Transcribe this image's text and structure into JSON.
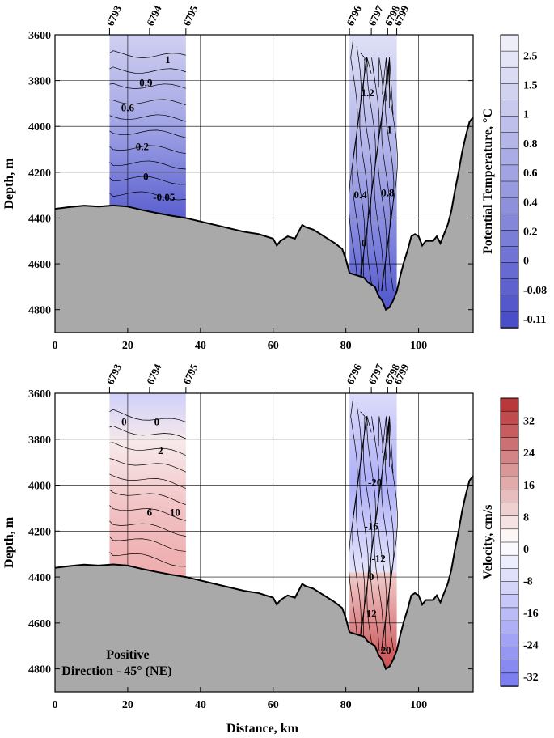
{
  "chart_data": [
    {
      "type": "heatmap",
      "panel": "top",
      "ylabel": "Depth, m",
      "xlabel": "",
      "xlim": [
        0,
        115
      ],
      "ylim": [
        4900,
        3600
      ],
      "x_ticks": [
        0,
        20,
        40,
        60,
        80,
        100
      ],
      "y_ticks": [
        3600,
        3800,
        4000,
        4200,
        4400,
        4600,
        4800
      ],
      "stations": [
        {
          "name": "6793",
          "x": 15
        },
        {
          "name": "6794",
          "x": 26
        },
        {
          "name": "6795",
          "x": 36
        },
        {
          "name": "6796",
          "x": 81
        },
        {
          "name": "6797",
          "x": 87
        },
        {
          "name": "6798",
          "x": 91.5
        },
        {
          "name": "6799",
          "x": 94
        }
      ],
      "contour_labels": [
        {
          "text": "1",
          "x": 31,
          "y": 3710
        },
        {
          "text": "0.9",
          "x": 25,
          "y": 3810
        },
        {
          "text": "0.6",
          "x": 20,
          "y": 3920
        },
        {
          "text": "0.2",
          "x": 24,
          "y": 4090
        },
        {
          "text": "0",
          "x": 25,
          "y": 4220
        },
        {
          "text": "-0.05",
          "x": 30,
          "y": 4310
        },
        {
          "text": "1.2",
          "x": 86,
          "y": 3855
        },
        {
          "text": "1",
          "x": 92,
          "y": 4015
        },
        {
          "text": "0.8",
          "x": 91.5,
          "y": 4290
        },
        {
          "text": "0.4",
          "x": 84,
          "y": 4300
        },
        {
          "text": "0",
          "x": 85,
          "y": 4510
        }
      ],
      "colorbar": {
        "title": "Potential Temperature, °C",
        "labels": [
          "2.5",
          "1.5",
          "1",
          "0.8",
          "0.6",
          "0.4",
          "0.2",
          "0",
          "-0.08",
          "-0.11"
        ],
        "color_top": "#eeeef9",
        "color_bottom": "#4a4fc8"
      }
    },
    {
      "type": "heatmap",
      "panel": "bottom",
      "ylabel": "Depth, m",
      "xlabel": "Distance, km",
      "xlim": [
        0,
        115
      ],
      "ylim": [
        4900,
        3600
      ],
      "x_ticks": [
        0,
        20,
        40,
        60,
        80,
        100
      ],
      "y_ticks": [
        3600,
        3800,
        4000,
        4200,
        4400,
        4600,
        4800
      ],
      "stations": [
        {
          "name": "6793",
          "x": 15
        },
        {
          "name": "6794",
          "x": 26
        },
        {
          "name": "6795",
          "x": 36
        },
        {
          "name": "6796",
          "x": 81
        },
        {
          "name": "6797",
          "x": 87
        },
        {
          "name": "6798",
          "x": 91.5
        },
        {
          "name": "6799",
          "x": 94
        }
      ],
      "contour_labels": [
        {
          "text": "0",
          "x": 19,
          "y": 3725
        },
        {
          "text": "0",
          "x": 28,
          "y": 3725
        },
        {
          "text": "2",
          "x": 29,
          "y": 3850
        },
        {
          "text": "6",
          "x": 26,
          "y": 4120
        },
        {
          "text": "10",
          "x": 33,
          "y": 4120
        },
        {
          "text": "-20",
          "x": 88,
          "y": 3990
        },
        {
          "text": "-16",
          "x": 87,
          "y": 4180
        },
        {
          "text": "-12",
          "x": 89,
          "y": 4320
        },
        {
          "text": "0",
          "x": 87,
          "y": 4400
        },
        {
          "text": "12",
          "x": 87,
          "y": 4560
        },
        {
          "text": "20",
          "x": 91,
          "y": 4720
        }
      ],
      "annotation": [
        "Positive",
        "Direction - 45° (NE)"
      ],
      "colorbar": {
        "title": "Velocity, cm/s",
        "labels": [
          "32",
          "24",
          "16",
          "8",
          "0",
          "-8",
          "-16",
          "-24",
          "-32"
        ],
        "color_top": "#b8383b",
        "color_mid": "#ffffff",
        "color_bottom": "#7d7ef0"
      }
    }
  ],
  "colors": {
    "seafloor": "#a9a9a9",
    "temp_shade": "#7378d8",
    "vel_blue": "#9a9bf3",
    "vel_red": "#e28b8d"
  }
}
